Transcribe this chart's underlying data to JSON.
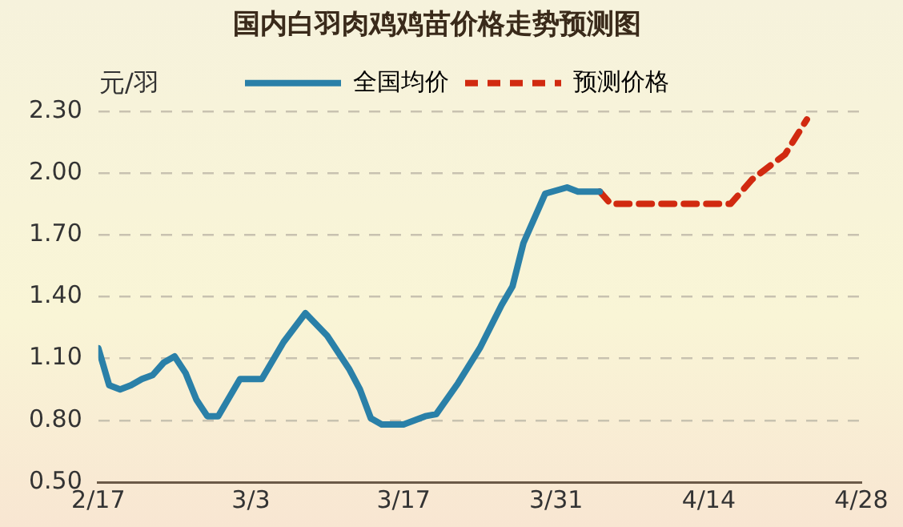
{
  "chart_data": {
    "type": "line",
    "title": "国内白羽肉鸡鸡苗价格走势预测图",
    "ylabel": "元/羽",
    "series": [
      {
        "name": "全国均价",
        "color": "#2a80a8",
        "line_style": "solid",
        "x": [
          "--02-17",
          "--02-18",
          "--02-19",
          "--02-20",
          "--02-21",
          "--02-22",
          "--02-23",
          "--02-24",
          "--02-25",
          "--02-26",
          "--02-27",
          "--02-28",
          "--03-02",
          "--03-04",
          "--03-06",
          "--03-08",
          "--03-10",
          "--03-12",
          "--03-13",
          "--03-14",
          "--03-15",
          "--03-17",
          "--03-19",
          "--03-20",
          "--03-22",
          "--03-24",
          "--03-26",
          "--03-27",
          "--03-28",
          "--03-30",
          "--04-01",
          "--04-02",
          "--04-04"
        ],
        "values": [
          1.15,
          0.97,
          0.95,
          0.97,
          1.0,
          1.02,
          1.08,
          1.11,
          1.03,
          0.9,
          0.82,
          0.82,
          1.0,
          1.0,
          1.18,
          1.32,
          1.21,
          1.05,
          0.95,
          0.81,
          0.78,
          0.78,
          0.82,
          0.83,
          0.98,
          1.15,
          1.36,
          1.45,
          1.66,
          1.9,
          1.93,
          1.91,
          1.91
        ]
      },
      {
        "name": "预测价格",
        "color": "#d12a10",
        "line_style": "dashed",
        "x": [
          "--04-04",
          "--04-05",
          "--04-16",
          "--04-18",
          "--04-21",
          "--04-23"
        ],
        "values": [
          1.91,
          1.85,
          1.85,
          1.97,
          2.09,
          2.26
        ]
      }
    ],
    "xlim": [
      "--02-17",
      "--04-28"
    ],
    "xticks": [
      {
        "value": "--02-17",
        "label": "2/17"
      },
      {
        "value": "--03-03",
        "label": "3/3"
      },
      {
        "value": "--03-17",
        "label": "3/17"
      },
      {
        "value": "--03-31",
        "label": "3/31"
      },
      {
        "value": "--04-14",
        "label": "4/14"
      },
      {
        "value": "--04-28",
        "label": "4/28"
      }
    ],
    "ylim": [
      0.5,
      2.3
    ],
    "yticks": [
      {
        "value": 0.5,
        "label": "0.50"
      },
      {
        "value": 0.8,
        "label": "0.80"
      },
      {
        "value": 1.1,
        "label": "1.10"
      },
      {
        "value": 1.4,
        "label": "1.40"
      },
      {
        "value": 1.7,
        "label": "1.70"
      },
      {
        "value": 2.0,
        "label": "2.00"
      },
      {
        "value": 2.3,
        "label": "2.30"
      }
    ],
    "grid": "y",
    "legend": "top left",
    "marker": "none"
  }
}
